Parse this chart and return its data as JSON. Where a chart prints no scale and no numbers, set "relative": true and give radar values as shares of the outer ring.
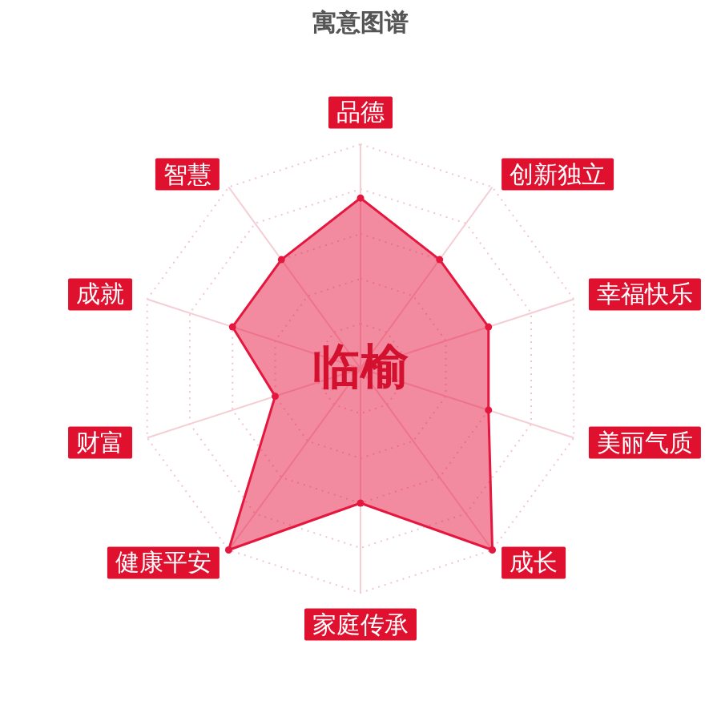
{
  "chart_data": {
    "type": "radar",
    "title": "寓意图谱",
    "relative": true,
    "grid": true,
    "marker": "circle",
    "annotations": [
      "临榆"
    ],
    "categories": [
      "品德",
      "创新独立",
      "幸福快乐",
      "美丽气质",
      "成长",
      "家庭传承",
      "健康平安",
      "财富",
      "成就",
      "智慧"
    ],
    "series": [
      {
        "color": "#e5173f",
        "values": [
          0.76,
          0.6,
          0.6,
          0.6,
          1.0,
          0.6,
          1.0,
          0.4,
          0.6,
          0.6
        ]
      }
    ]
  }
}
